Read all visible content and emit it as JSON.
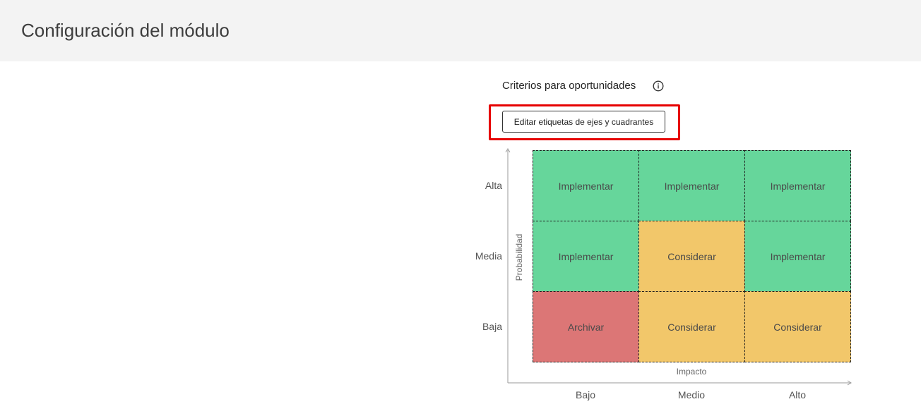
{
  "header": {
    "title": "Configuración del módulo"
  },
  "section": {
    "title": "Criterios para oportunidades",
    "info_icon": "info-circle-icon"
  },
  "toolbar": {
    "edit_label": "Editar etiquetas de ejes y cuadrantes",
    "highlight_color": "#e60000"
  },
  "matrix": {
    "y_axis_title": "Probabilidad",
    "x_axis_title": "Impacto",
    "rows": [
      "Alta",
      "Media",
      "Baja"
    ],
    "columns": [
      "Bajo",
      "Medio",
      "Alto"
    ],
    "cells": [
      [
        {
          "label": "Implementar",
          "color": "#66d69b"
        },
        {
          "label": "Implementar",
          "color": "#66d69b"
        },
        {
          "label": "Implementar",
          "color": "#66d69b"
        }
      ],
      [
        {
          "label": "Implementar",
          "color": "#66d69b"
        },
        {
          "label": "Considerar",
          "color": "#f2c76a"
        },
        {
          "label": "Implementar",
          "color": "#66d69b"
        }
      ],
      [
        {
          "label": "Archivar",
          "color": "#dc7676"
        },
        {
          "label": "Considerar",
          "color": "#f2c76a"
        },
        {
          "label": "Considerar",
          "color": "#f2c76a"
        }
      ]
    ]
  }
}
